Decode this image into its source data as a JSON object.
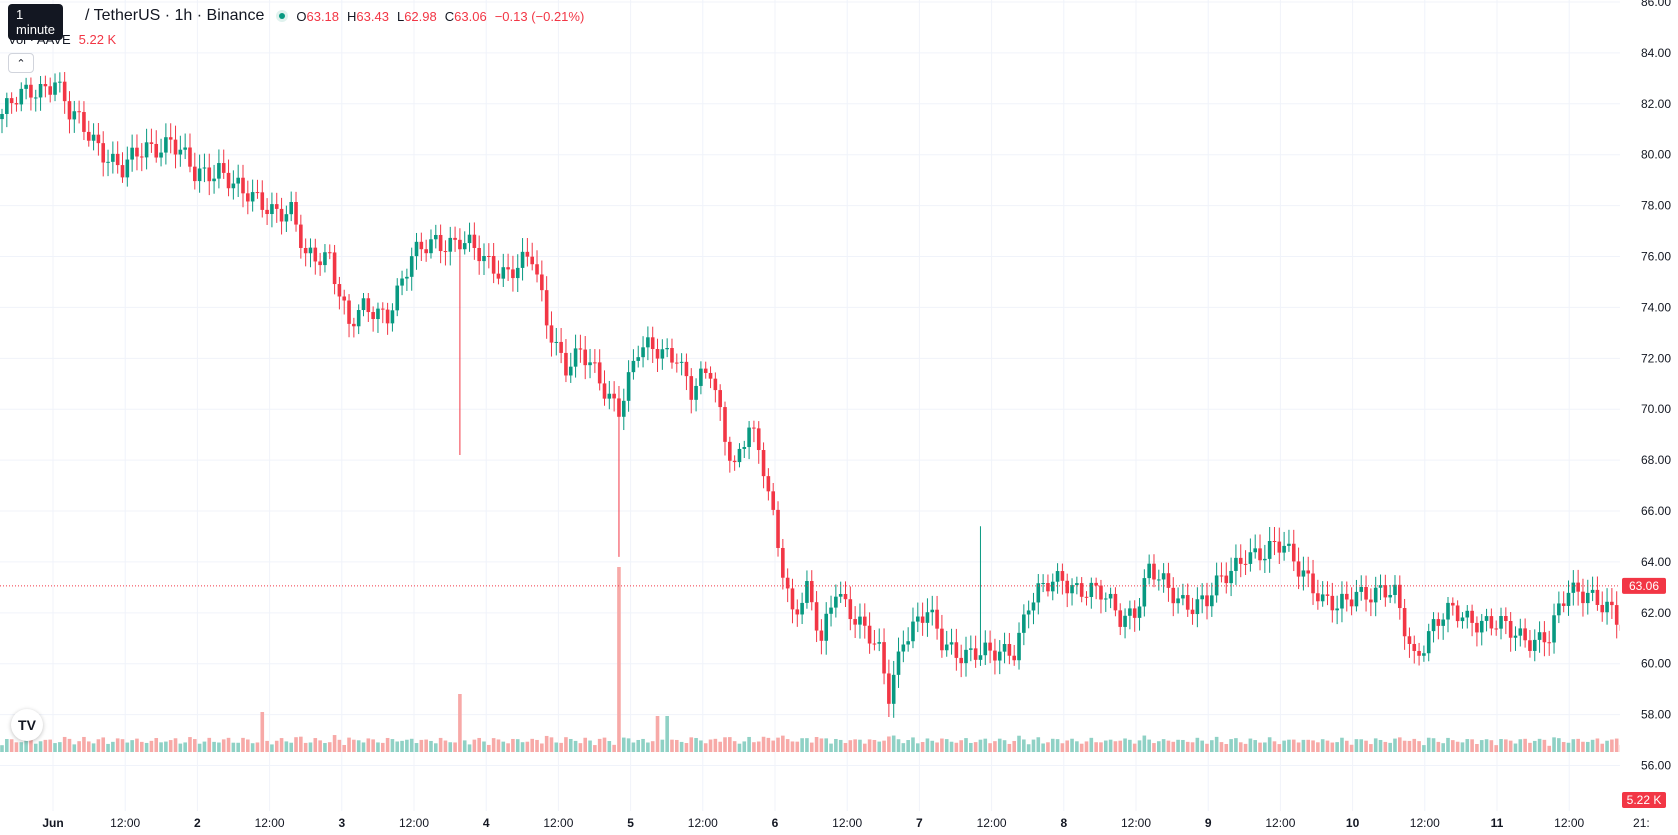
{
  "header": {
    "tooltip": "1 minute",
    "symbol": "/ TetherUS · 1h · Binance",
    "ohlc": [
      {
        "label": "O",
        "value": "63.18"
      },
      {
        "label": "H",
        "value": "63.43"
      },
      {
        "label": "L",
        "value": "62.98"
      },
      {
        "label": "C",
        "value": "63.06"
      },
      {
        "label": "",
        "value": "−0.13 (−0.21%)"
      }
    ],
    "volume_label": "Vol · AAVE",
    "volume_value": "5.22 K"
  },
  "logo_text": "TV",
  "colors": {
    "up": "#089981",
    "down": "#f23645",
    "vol_up": "#8fd1c5",
    "vol_down": "#f7a9a7",
    "grid": "#f0f3fa"
  },
  "chart_data": {
    "type": "candlestick",
    "interval": "1h",
    "ylim": [
      55,
      86
    ],
    "y_ticks": [
      "56.00",
      "58.00",
      "60.00",
      "62.00",
      "64.00",
      "66.00",
      "68.00",
      "70.00",
      "72.00",
      "74.00",
      "76.00",
      "78.00",
      "80.00",
      "82.00",
      "84.00",
      "86.00"
    ],
    "x_ticks": [
      "Jun",
      "12:00",
      "2",
      "12:00",
      "3",
      "12:00",
      "4",
      "12:00",
      "5",
      "12:00",
      "6",
      "12:00",
      "7",
      "12:00",
      "8",
      "12:00",
      "9",
      "12:00",
      "10",
      "12:00",
      "11",
      "12:00",
      "21:"
    ],
    "last_price": "63.06",
    "last_volume": "5.22 K",
    "price_anchors": [
      [
        0,
        81.6
      ],
      [
        6,
        82.5
      ],
      [
        11,
        83
      ],
      [
        14,
        81.5
      ],
      [
        20,
        80.5
      ],
      [
        25,
        79.3
      ],
      [
        30,
        80.3
      ],
      [
        35,
        80.6
      ],
      [
        40,
        79.1
      ],
      [
        45,
        79.6
      ],
      [
        50,
        78.3
      ],
      [
        55,
        78.1
      ],
      [
        60,
        77.7
      ],
      [
        63,
        75.8
      ],
      [
        68,
        76.2
      ],
      [
        72,
        73.2
      ],
      [
        75,
        73.8
      ],
      [
        80,
        73.9
      ],
      [
        85,
        75.8
      ],
      [
        90,
        76.7
      ],
      [
        95,
        76.6
      ],
      [
        100,
        75.8
      ],
      [
        105,
        75.5
      ],
      [
        110,
        75.8
      ],
      [
        113,
        73.5
      ],
      [
        117,
        71.8
      ],
      [
        120,
        72.1
      ],
      [
        125,
        70.8
      ],
      [
        128,
        70.2
      ],
      [
        132,
        72.2
      ],
      [
        137,
        72.3
      ],
      [
        140,
        72.3
      ],
      [
        143,
        70.6
      ],
      [
        147,
        71.4
      ],
      [
        150,
        69.1
      ],
      [
        152,
        67.9
      ],
      [
        155,
        69.3
      ],
      [
        158,
        67.5
      ],
      [
        161,
        64.8
      ],
      [
        164,
        62.1
      ],
      [
        167,
        62.8
      ],
      [
        170,
        60.7
      ],
      [
        173,
        63.1
      ],
      [
        176,
        62.2
      ],
      [
        179,
        61.2
      ],
      [
        182,
        60.3
      ],
      [
        184,
        58.8
      ],
      [
        187,
        61.2
      ],
      [
        192,
        61.9
      ],
      [
        195,
        60.8
      ],
      [
        200,
        60.5
      ],
      [
        205,
        60.2
      ],
      [
        210,
        60.7
      ],
      [
        213,
        62.4
      ],
      [
        216,
        62.8
      ],
      [
        220,
        63.4
      ],
      [
        224,
        63.0
      ],
      [
        228,
        62.6
      ],
      [
        232,
        61.9
      ],
      [
        235,
        62.2
      ],
      [
        238,
        63.6
      ],
      [
        242,
        62.8
      ],
      [
        246,
        62.5
      ],
      [
        250,
        62.4
      ],
      [
        254,
        63.4
      ],
      [
        258,
        64.5
      ],
      [
        262,
        64.2
      ],
      [
        266,
        64.6
      ],
      [
        270,
        63.8
      ],
      [
        274,
        62.3
      ],
      [
        277,
        62.1
      ],
      [
        281,
        63.0
      ],
      [
        285,
        62.7
      ],
      [
        289,
        62.6
      ],
      [
        293,
        60.4
      ],
      [
        297,
        61.4
      ],
      [
        301,
        62.0
      ],
      [
        305,
        61.9
      ],
      [
        309,
        61.5
      ],
      [
        313,
        61.2
      ],
      [
        317,
        61.1
      ],
      [
        321,
        61.0
      ],
      [
        325,
        62.8
      ],
      [
        329,
        63.0
      ],
      [
        333,
        62.1
      ],
      [
        337,
        61.0
      ],
      [
        341,
        60.5
      ],
      [
        345,
        61.6
      ],
      [
        349,
        63.2
      ],
      [
        353,
        63.4
      ],
      [
        355,
        63.1
      ],
      [
        358,
        63.06
      ]
    ],
    "series": [
      {
        "name": "AAVE/USDT",
        "candles": 359
      },
      {
        "name": "Vol · AAVE",
        "values": "volume per candle"
      }
    ]
  }
}
